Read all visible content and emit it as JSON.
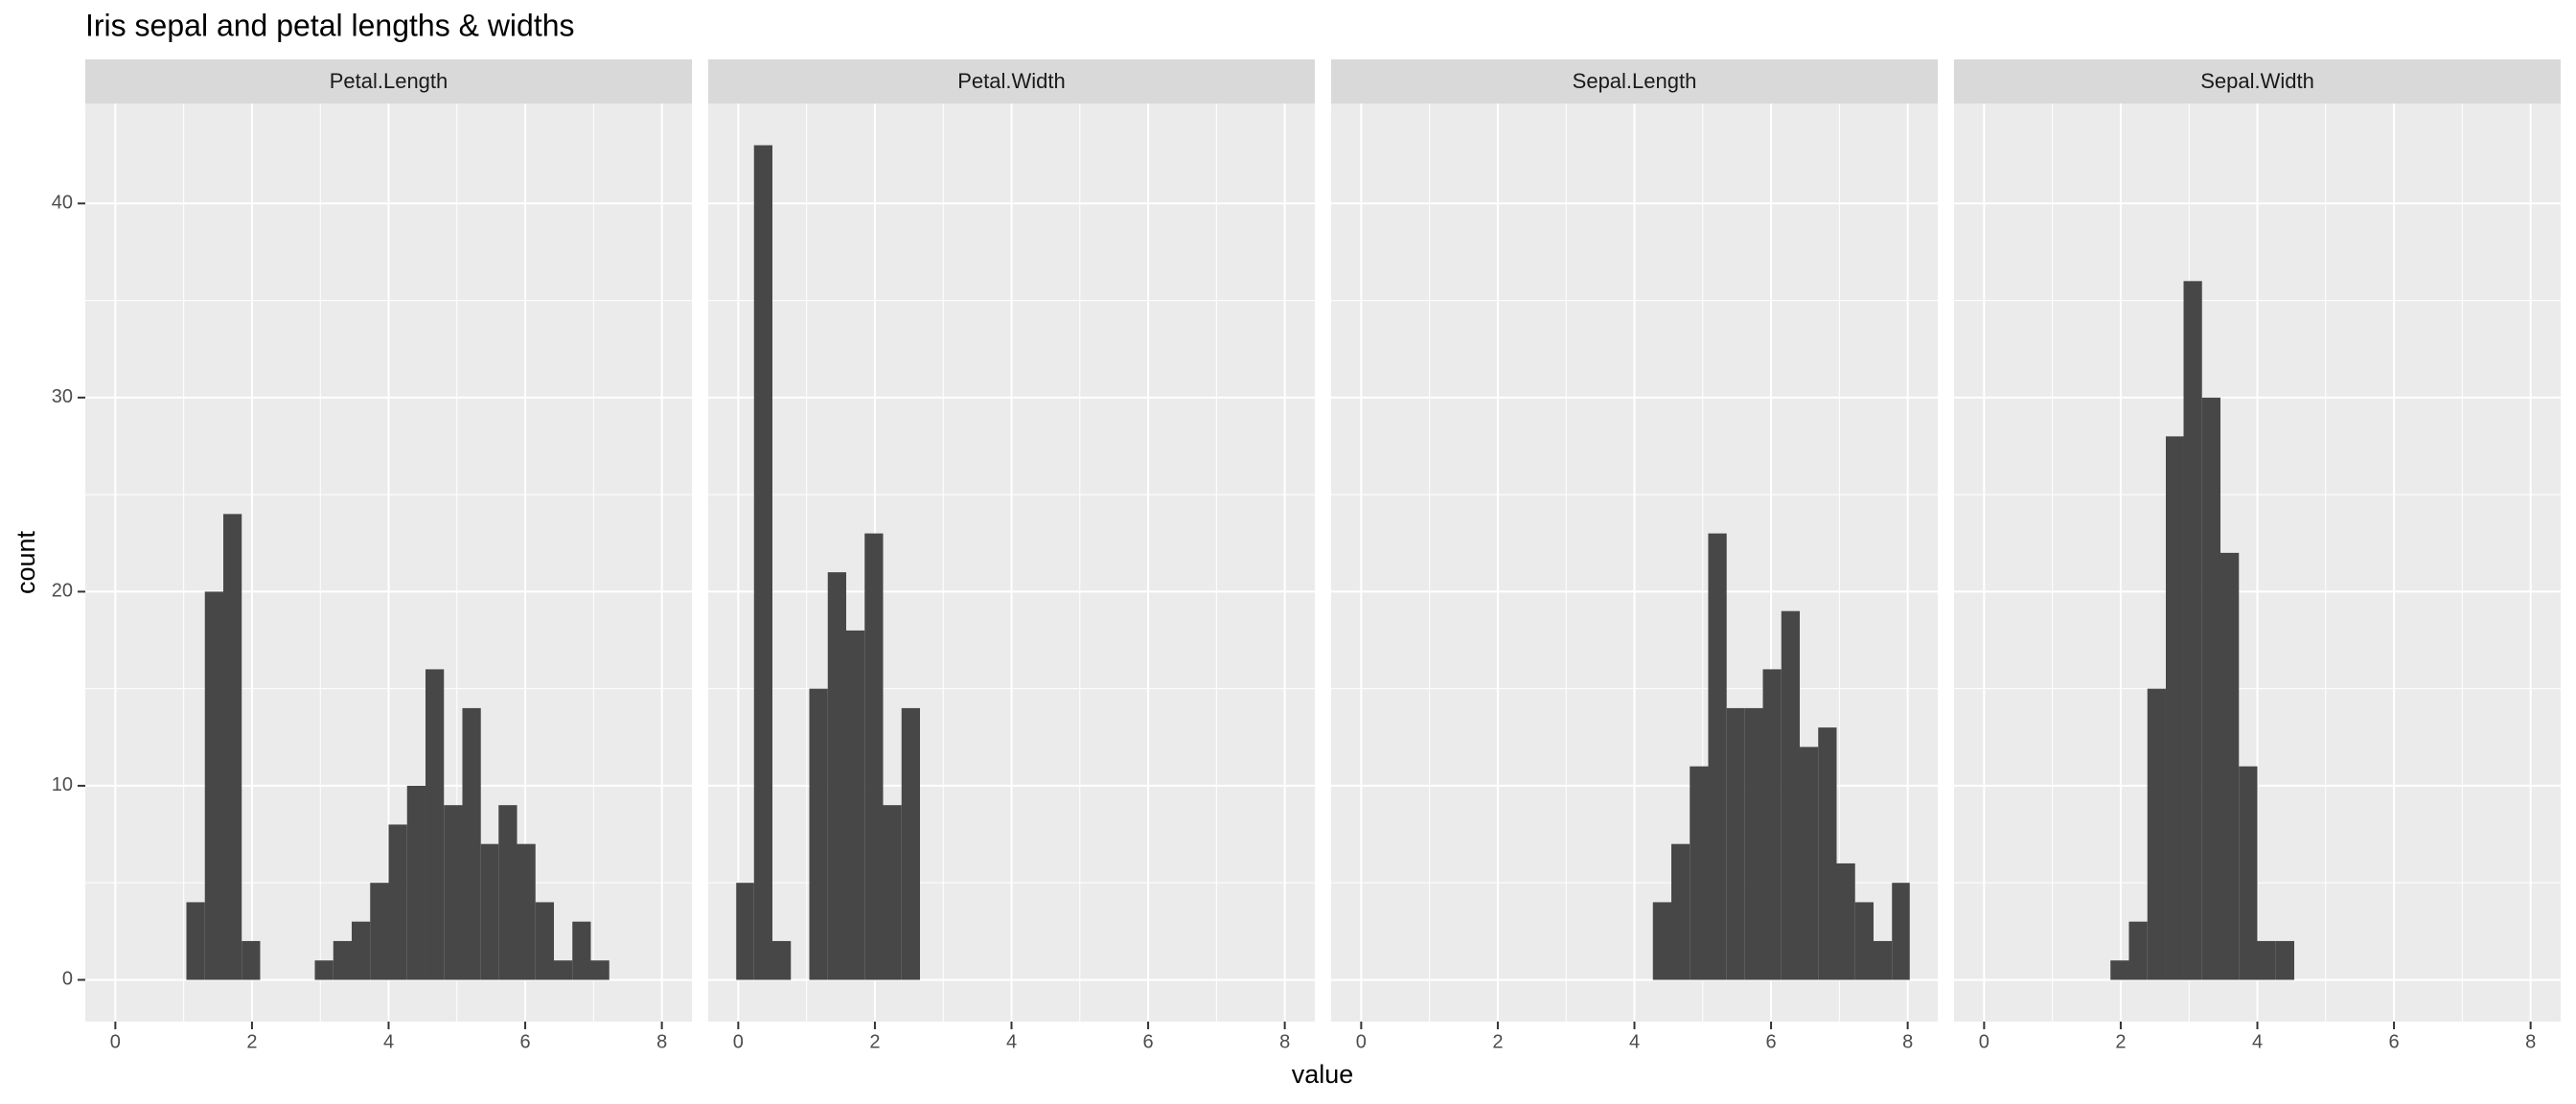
{
  "title": "Iris sepal and petal lengths & widths",
  "x_label": "value",
  "y_label": "count",
  "chart_data": [
    {
      "type": "histogram",
      "title": "Petal.Length",
      "color": "#474747",
      "bins": [
        -0.03,
        0.23,
        0.5,
        0.77,
        1.04,
        1.31,
        1.58,
        1.85,
        2.12,
        2.39,
        2.66,
        2.92,
        3.19,
        3.46,
        3.73,
        4.0,
        4.27,
        4.54,
        4.81,
        5.08,
        5.35,
        5.61,
        5.88,
        6.15,
        6.42,
        6.69,
        6.96,
        7.23,
        7.5,
        7.77,
        8.03
      ],
      "values": [
        0,
        0,
        0,
        0,
        4,
        20,
        24,
        2,
        0,
        0,
        0,
        1,
        2,
        3,
        5,
        8,
        10,
        16,
        9,
        14,
        7,
        9,
        7,
        4,
        1,
        3,
        1,
        0,
        0,
        0
      ],
      "xlim": [
        -0.44,
        8.44
      ],
      "xticks": [
        0,
        2,
        4,
        6,
        8
      ],
      "ylim": [
        -2.15,
        45.15
      ],
      "yticks": [
        0,
        10,
        20,
        30,
        40
      ],
      "grid": true,
      "minor_grid": true
    },
    {
      "type": "histogram",
      "title": "Petal.Width",
      "color": "#474747",
      "bins": [
        -0.03,
        0.23,
        0.5,
        0.77,
        1.04,
        1.31,
        1.58,
        1.85,
        2.12,
        2.39,
        2.66,
        2.92,
        3.19,
        3.46,
        3.73,
        4.0,
        4.27,
        4.54,
        4.81,
        5.08,
        5.35,
        5.61,
        5.88,
        6.15,
        6.42,
        6.69,
        6.96,
        7.23,
        7.5,
        7.77,
        8.03
      ],
      "values": [
        5,
        43,
        2,
        0,
        15,
        21,
        18,
        23,
        9,
        14,
        0,
        0,
        0,
        0,
        0,
        0,
        0,
        0,
        0,
        0,
        0,
        0,
        0,
        0,
        0,
        0,
        0,
        0,
        0,
        0
      ],
      "xlim": [
        -0.44,
        8.44
      ],
      "xticks": [
        0,
        2,
        4,
        6,
        8
      ],
      "ylim": [
        -2.15,
        45.15
      ],
      "yticks": [
        0,
        10,
        20,
        30,
        40
      ],
      "grid": true,
      "minor_grid": true
    },
    {
      "type": "histogram",
      "title": "Sepal.Length",
      "color": "#474747",
      "bins": [
        -0.03,
        0.23,
        0.5,
        0.77,
        1.04,
        1.31,
        1.58,
        1.85,
        2.12,
        2.39,
        2.66,
        2.92,
        3.19,
        3.46,
        3.73,
        4.0,
        4.27,
        4.54,
        4.81,
        5.08,
        5.35,
        5.61,
        5.88,
        6.15,
        6.42,
        6.69,
        6.96,
        7.23,
        7.5,
        7.77,
        8.03
      ],
      "values": [
        0,
        0,
        0,
        0,
        0,
        0,
        0,
        0,
        0,
        0,
        0,
        0,
        0,
        0,
        0,
        0,
        4,
        7,
        11,
        23,
        14,
        14,
        16,
        19,
        12,
        13,
        6,
        4,
        2,
        5
      ],
      "xlim": [
        -0.44,
        8.44
      ],
      "xticks": [
        0,
        2,
        4,
        6,
        8
      ],
      "ylim": [
        -2.15,
        45.15
      ],
      "yticks": [
        0,
        10,
        20,
        30,
        40
      ],
      "grid": true,
      "minor_grid": true
    },
    {
      "type": "histogram",
      "title": "Sepal.Width",
      "color": "#474747",
      "bins": [
        -0.03,
        0.23,
        0.5,
        0.77,
        1.04,
        1.31,
        1.58,
        1.85,
        2.12,
        2.39,
        2.66,
        2.92,
        3.19,
        3.46,
        3.73,
        4.0,
        4.27,
        4.54,
        4.81,
        5.08,
        5.35,
        5.61,
        5.88,
        6.15,
        6.42,
        6.69,
        6.96,
        7.23,
        7.5,
        7.77,
        8.03
      ],
      "values": [
        0,
        0,
        0,
        0,
        0,
        0,
        0,
        1,
        3,
        15,
        28,
        36,
        30,
        22,
        11,
        2,
        2,
        0,
        0,
        0,
        0,
        0,
        0,
        0,
        0,
        0,
        0,
        0,
        0,
        0
      ],
      "xlim": [
        -0.44,
        8.44
      ],
      "xticks": [
        0,
        2,
        4,
        6,
        8
      ],
      "ylim": [
        -2.15,
        45.15
      ],
      "yticks": [
        0,
        10,
        20,
        30,
        40
      ],
      "grid": true,
      "minor_grid": true
    }
  ]
}
